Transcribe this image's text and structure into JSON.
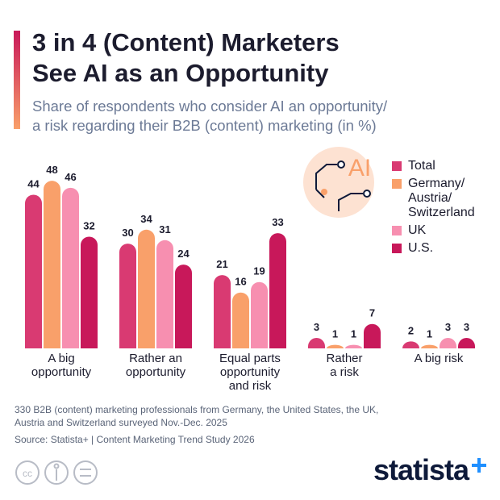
{
  "chart_data": {
    "type": "bar",
    "title": "3 in 4 (Content) Marketers\nSee AI as an Opportunity",
    "subtitle": "Share of respondents who consider AI an opportunity/\na risk regarding their B2B (content) marketing (in %)",
    "categories": [
      "A big\nopportunity",
      "Rather an\nopportunity",
      "Equal parts\nopportunity\nand risk",
      "Rather\na risk",
      "A big risk"
    ],
    "series": [
      {
        "name": "Total",
        "color": "#d93a72",
        "values": [
          44,
          30,
          21,
          3,
          2
        ]
      },
      {
        "name": "Germany/\nAustria/\nSwitzerland",
        "color": "#f9a06a",
        "values": [
          48,
          34,
          16,
          1,
          1
        ]
      },
      {
        "name": "UK",
        "color": "#f78fb0",
        "values": [
          46,
          31,
          19,
          1,
          3
        ]
      },
      {
        "name": "U.S.",
        "color": "#c8185a",
        "values": [
          32,
          24,
          33,
          7,
          3
        ]
      }
    ],
    "legend_position": "top-right"
  },
  "icon_label": "AI",
  "footnote": "330 B2B (content) marketing professionals from Germany, the United States, the UK,\nAustria and Switzerland surveyed Nov.-Dec. 2025",
  "source": "Source: Statista+ | Content Marketing Trend Study 2026",
  "brand": "statista"
}
